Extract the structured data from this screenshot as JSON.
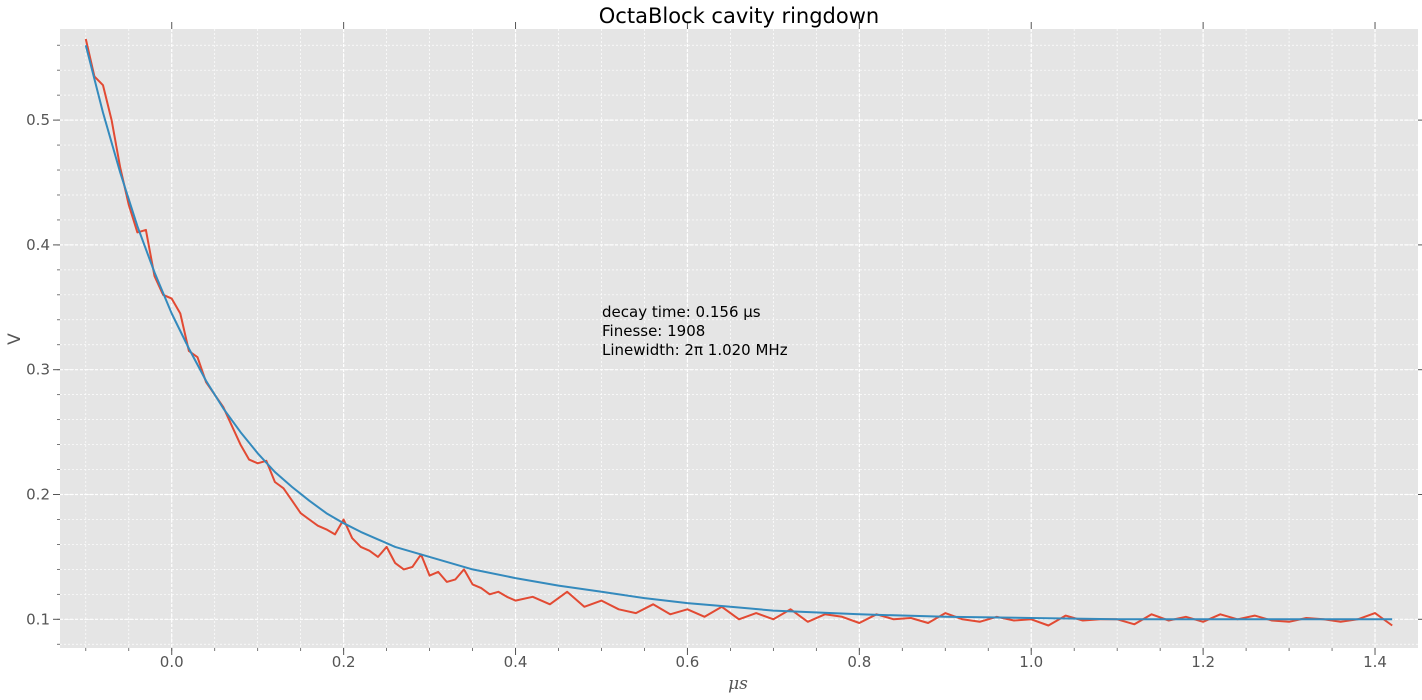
{
  "chart_data": {
    "type": "line",
    "title": "OctaBlock cavity ringdown",
    "xlabel": "μs",
    "ylabel": "V",
    "xlim": [
      -0.13,
      1.45
    ],
    "ylim": [
      0.077,
      0.573
    ],
    "xticks": [
      0.0,
      0.2,
      0.4,
      0.6,
      0.8,
      1.0,
      1.2,
      1.4
    ],
    "xtick_labels": [
      "0.0",
      "0.2",
      "0.4",
      "0.6",
      "0.8",
      "1.0",
      "1.2",
      "1.4"
    ],
    "yticks": [
      0.1,
      0.2,
      0.3,
      0.4,
      0.5
    ],
    "ytick_labels": [
      "0.1",
      "0.2",
      "0.3",
      "0.4",
      "0.5"
    ],
    "grid": true,
    "background": "#e5e5e5",
    "annotations": [
      "decay time: 0.156 μs",
      "Finesse: 1908",
      "Linewidth: 2π 1.020 MHz"
    ],
    "series": [
      {
        "kind": "measured",
        "color": "#e24a33",
        "x": [
          -0.1,
          -0.09,
          -0.08,
          -0.07,
          -0.06,
          -0.05,
          -0.04,
          -0.03,
          -0.02,
          -0.01,
          0.0,
          0.01,
          0.02,
          0.03,
          0.04,
          0.05,
          0.06,
          0.07,
          0.08,
          0.09,
          0.1,
          0.11,
          0.12,
          0.13,
          0.14,
          0.15,
          0.16,
          0.17,
          0.18,
          0.19,
          0.2,
          0.21,
          0.22,
          0.23,
          0.24,
          0.25,
          0.26,
          0.27,
          0.28,
          0.29,
          0.3,
          0.31,
          0.32,
          0.33,
          0.34,
          0.35,
          0.36,
          0.37,
          0.38,
          0.39,
          0.4,
          0.42,
          0.44,
          0.46,
          0.48,
          0.5,
          0.52,
          0.54,
          0.56,
          0.58,
          0.6,
          0.62,
          0.64,
          0.66,
          0.68,
          0.7,
          0.72,
          0.74,
          0.76,
          0.78,
          0.8,
          0.82,
          0.84,
          0.86,
          0.88,
          0.9,
          0.92,
          0.94,
          0.96,
          0.98,
          1.0,
          1.02,
          1.04,
          1.06,
          1.08,
          1.1,
          1.12,
          1.14,
          1.16,
          1.18,
          1.2,
          1.22,
          1.24,
          1.26,
          1.28,
          1.3,
          1.32,
          1.34,
          1.36,
          1.38,
          1.4,
          1.42
        ],
        "y": [
          0.565,
          0.535,
          0.528,
          0.5,
          0.462,
          0.432,
          0.41,
          0.412,
          0.375,
          0.36,
          0.357,
          0.345,
          0.315,
          0.31,
          0.29,
          0.28,
          0.27,
          0.255,
          0.24,
          0.228,
          0.225,
          0.227,
          0.21,
          0.205,
          0.195,
          0.185,
          0.18,
          0.175,
          0.172,
          0.168,
          0.18,
          0.165,
          0.158,
          0.155,
          0.15,
          0.158,
          0.145,
          0.14,
          0.142,
          0.152,
          0.135,
          0.138,
          0.13,
          0.132,
          0.14,
          0.128,
          0.125,
          0.12,
          0.122,
          0.118,
          0.115,
          0.118,
          0.112,
          0.122,
          0.11,
          0.115,
          0.108,
          0.105,
          0.112,
          0.104,
          0.108,
          0.102,
          0.11,
          0.1,
          0.105,
          0.1,
          0.108,
          0.098,
          0.104,
          0.102,
          0.097,
          0.104,
          0.1,
          0.101,
          0.097,
          0.105,
          0.1,
          0.098,
          0.102,
          0.099,
          0.1,
          0.095,
          0.103,
          0.099,
          0.1,
          0.1,
          0.096,
          0.104,
          0.099,
          0.102,
          0.098,
          0.104,
          0.1,
          0.103,
          0.099,
          0.098,
          0.101,
          0.1,
          0.098,
          0.1,
          0.105,
          0.095
        ]
      },
      {
        "kind": "fit",
        "color": "#348abd",
        "x": [
          -0.1,
          -0.08,
          -0.06,
          -0.04,
          -0.02,
          0.0,
          0.02,
          0.04,
          0.06,
          0.08,
          0.1,
          0.12,
          0.14,
          0.16,
          0.18,
          0.2,
          0.22,
          0.24,
          0.26,
          0.28,
          0.3,
          0.35,
          0.4,
          0.45,
          0.5,
          0.55,
          0.6,
          0.65,
          0.7,
          0.8,
          0.9,
          1.0,
          1.1,
          1.2,
          1.3,
          1.42
        ],
        "y": [
          0.56,
          0.506,
          0.458,
          0.415,
          0.378,
          0.345,
          0.317,
          0.291,
          0.269,
          0.25,
          0.233,
          0.218,
          0.206,
          0.195,
          0.185,
          0.177,
          0.17,
          0.164,
          0.158,
          0.154,
          0.15,
          0.14,
          0.133,
          0.127,
          0.122,
          0.117,
          0.113,
          0.11,
          0.107,
          0.104,
          0.102,
          0.101,
          0.1,
          0.1,
          0.1,
          0.1
        ]
      }
    ]
  }
}
